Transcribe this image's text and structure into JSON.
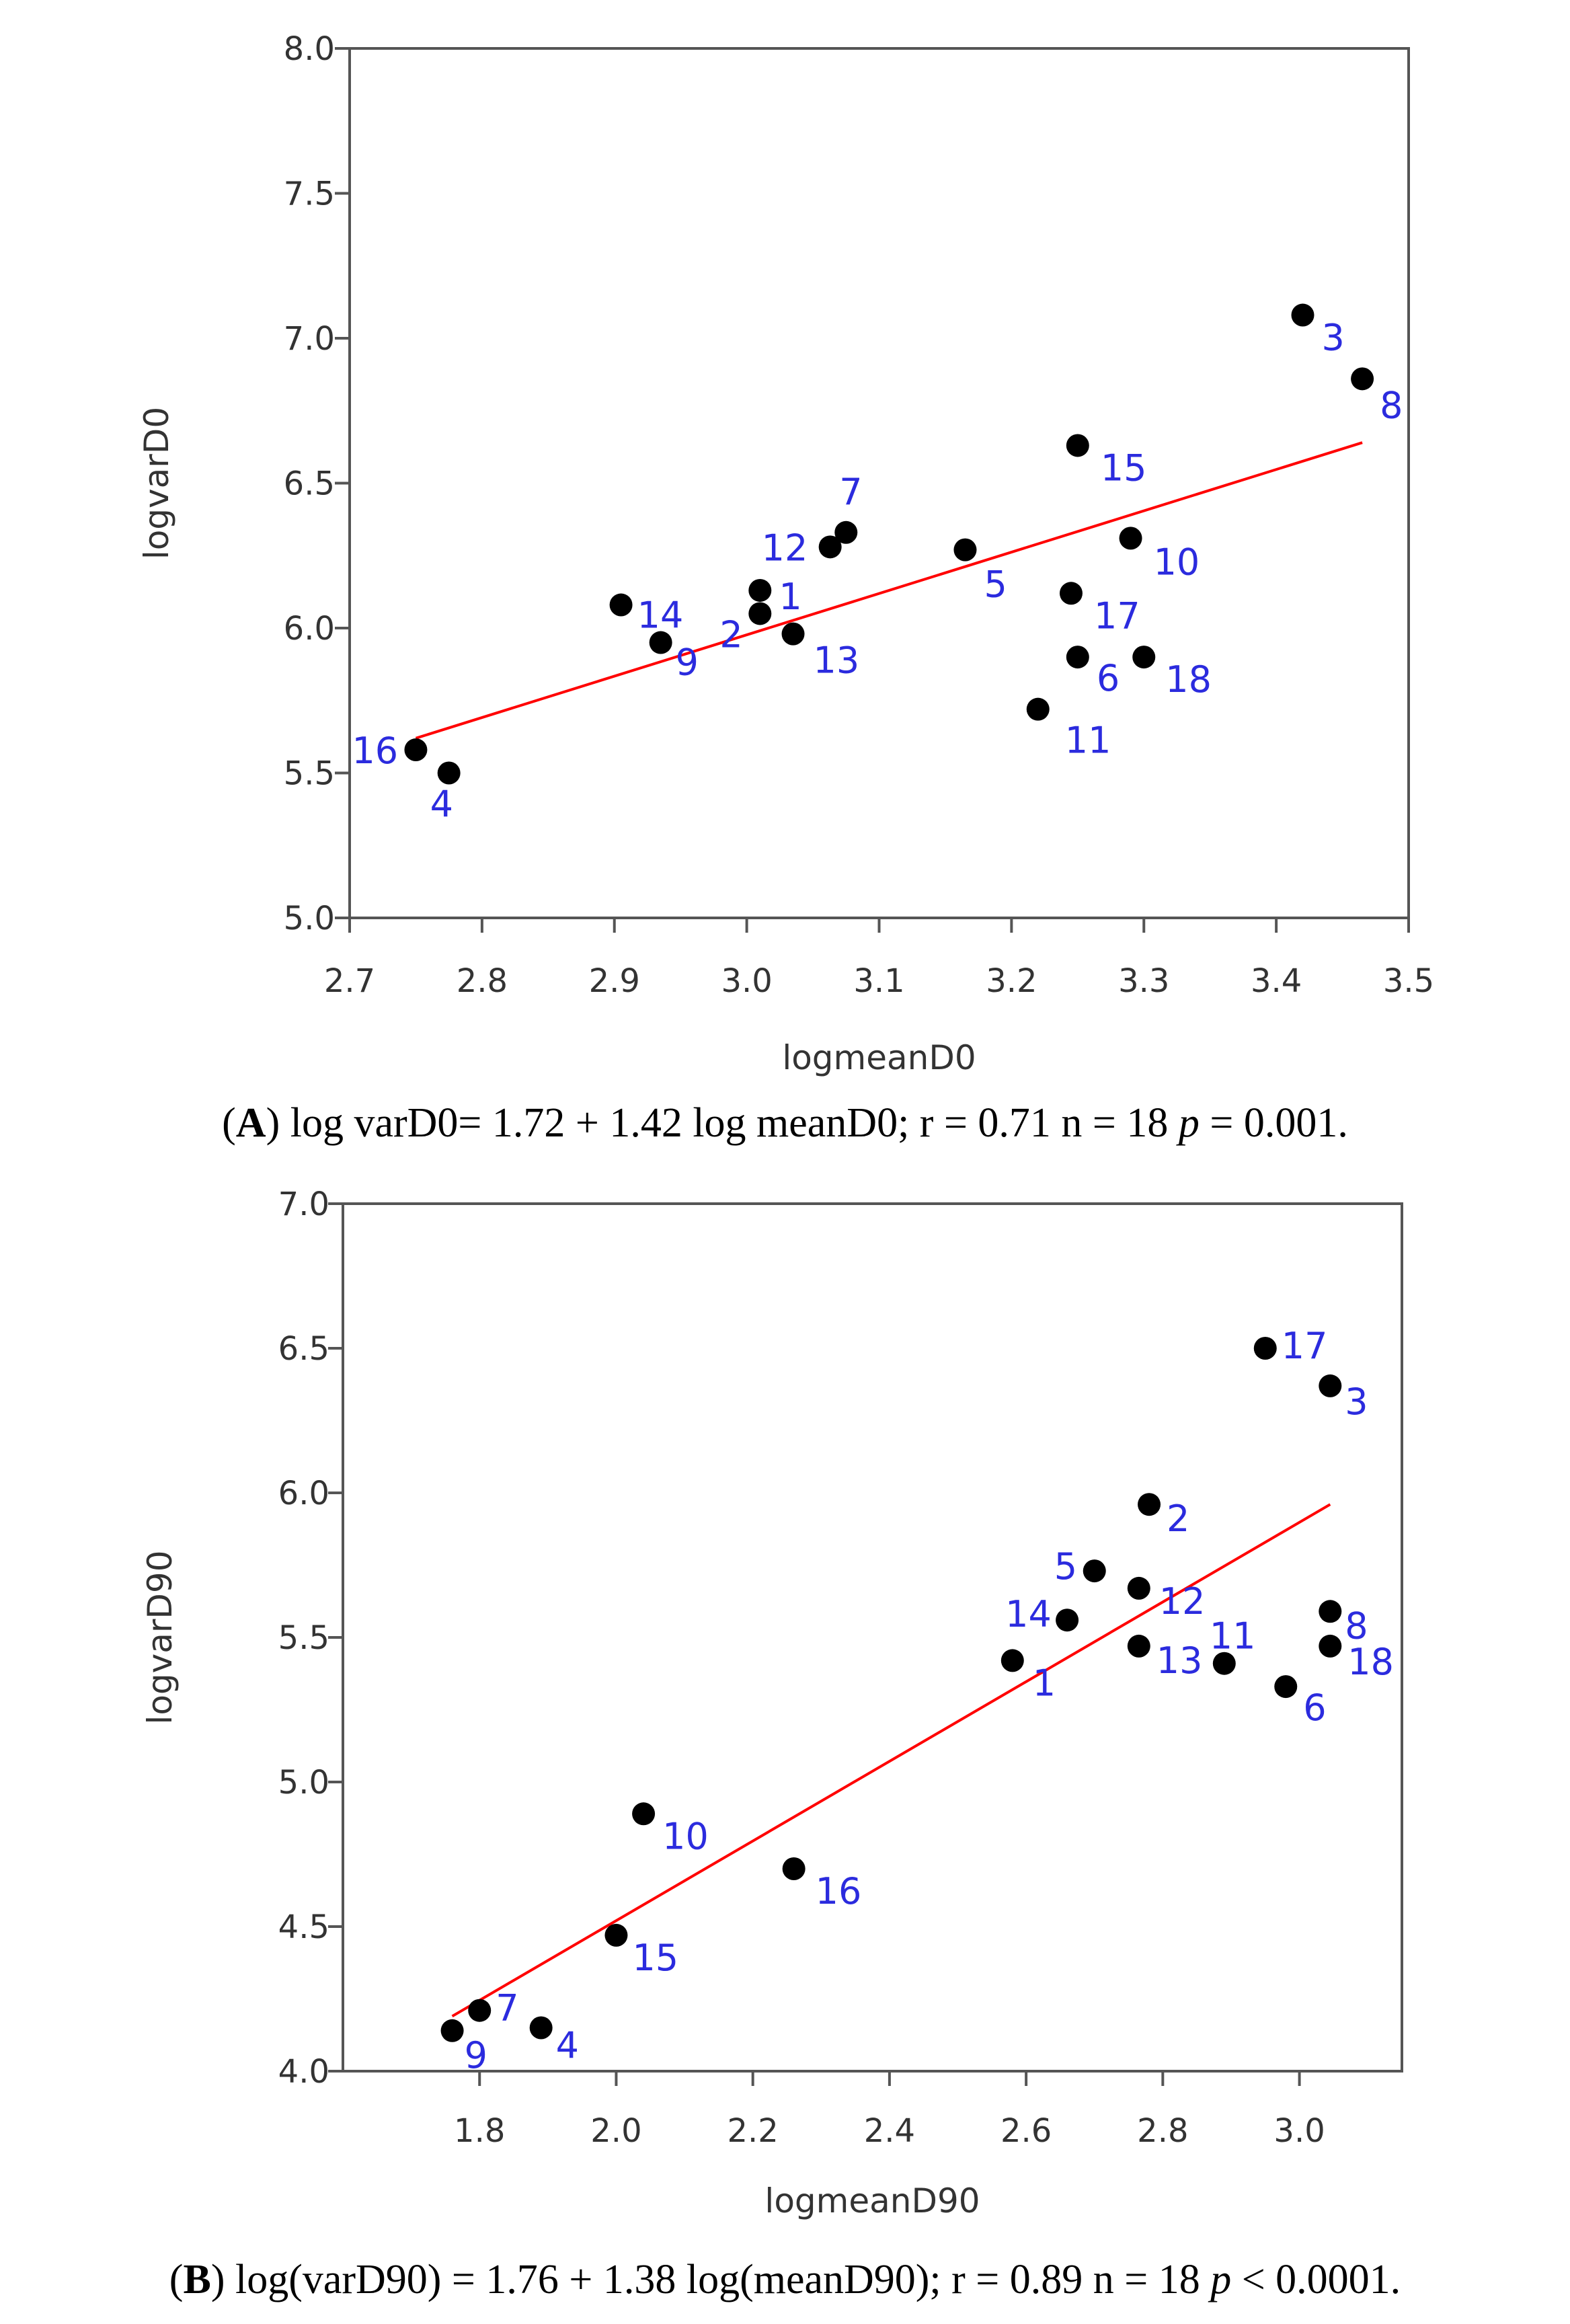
{
  "chart_data": [
    {
      "type": "scatter",
      "xlabel": "logmeanD0",
      "ylabel": "logvarD0",
      "xlim": [
        2.7,
        3.5
      ],
      "ylim": [
        5.0,
        8.0
      ],
      "x_ticks": [
        "2.7",
        "2.8",
        "2.9",
        "3.0",
        "3.1",
        "3.2",
        "3.3",
        "3.4",
        "3.5"
      ],
      "y_ticks": [
        "5.0",
        "5.5",
        "6.0",
        "6.5",
        "7.0",
        "7.5",
        "8.0"
      ],
      "points": [
        {
          "label": "1",
          "x": 3.01,
          "y": 6.13
        },
        {
          "label": "2",
          "x": 3.01,
          "y": 6.05
        },
        {
          "label": "3",
          "x": 3.42,
          "y": 7.08
        },
        {
          "label": "4",
          "x": 2.775,
          "y": 5.5
        },
        {
          "label": "5",
          "x": 3.165,
          "y": 6.27
        },
        {
          "label": "6",
          "x": 3.25,
          "y": 5.9
        },
        {
          "label": "7",
          "x": 3.075,
          "y": 6.33
        },
        {
          "label": "8",
          "x": 3.465,
          "y": 6.86
        },
        {
          "label": "9",
          "x": 2.935,
          "y": 5.95
        },
        {
          "label": "10",
          "x": 3.29,
          "y": 6.31
        },
        {
          "label": "11",
          "x": 3.22,
          "y": 5.72
        },
        {
          "label": "12",
          "x": 3.063,
          "y": 6.28
        },
        {
          "label": "13",
          "x": 3.035,
          "y": 5.98
        },
        {
          "label": "14",
          "x": 2.905,
          "y": 6.08
        },
        {
          "label": "15",
          "x": 3.25,
          "y": 6.63
        },
        {
          "label": "16",
          "x": 2.75,
          "y": 5.58
        },
        {
          "label": "17",
          "x": 3.245,
          "y": 6.12
        },
        {
          "label": "18",
          "x": 3.3,
          "y": 5.9
        }
      ],
      "fit_line": {
        "x": [
          2.75,
          3.465
        ],
        "y": [
          5.62,
          6.64
        ],
        "color": "#ff0000"
      },
      "point_color": "#000000",
      "label_color": "#2b2bde"
    },
    {
      "type": "scatter",
      "xlabel": "logmeanD90",
      "ylabel": "logvarD90",
      "xlim": [
        1.6,
        3.15
      ],
      "ylim": [
        4.0,
        7.0
      ],
      "x_ticks": [
        "1.8",
        "2.0",
        "2.2",
        "2.4",
        "2.6",
        "2.8",
        "3.0"
      ],
      "y_ticks": [
        "4.0",
        "4.5",
        "5.0",
        "5.5",
        "6.0",
        "6.5",
        "7.0"
      ],
      "points": [
        {
          "label": "1",
          "x": 2.58,
          "y": 5.42
        },
        {
          "label": "2",
          "x": 2.78,
          "y": 5.96
        },
        {
          "label": "3",
          "x": 3.045,
          "y": 6.37
        },
        {
          "label": "4",
          "x": 1.89,
          "y": 4.15
        },
        {
          "label": "5",
          "x": 2.7,
          "y": 5.73
        },
        {
          "label": "6",
          "x": 2.98,
          "y": 5.33
        },
        {
          "label": "7",
          "x": 1.8,
          "y": 4.21
        },
        {
          "label": "8",
          "x": 3.045,
          "y": 5.59
        },
        {
          "label": "9",
          "x": 1.76,
          "y": 4.14
        },
        {
          "label": "10",
          "x": 2.04,
          "y": 4.89
        },
        {
          "label": "11",
          "x": 2.89,
          "y": 5.41
        },
        {
          "label": "12",
          "x": 2.765,
          "y": 5.67
        },
        {
          "label": "13",
          "x": 2.765,
          "y": 5.47
        },
        {
          "label": "14",
          "x": 2.66,
          "y": 5.56
        },
        {
          "label": "15",
          "x": 2.0,
          "y": 4.47
        },
        {
          "label": "16",
          "x": 2.26,
          "y": 4.7
        },
        {
          "label": "17",
          "x": 2.95,
          "y": 6.5
        },
        {
          "label": "18",
          "x": 3.045,
          "y": 5.47
        }
      ],
      "fit_line": {
        "x": [
          1.76,
          3.045
        ],
        "y": [
          4.19,
          5.96
        ],
        "color": "#ff0000"
      },
      "point_color": "#000000",
      "label_color": "#2b2bde"
    }
  ],
  "captions": {
    "a": {
      "tag": "A",
      "text": "log varD0= 1.72 + 1.42 log meanD0; r = 0.71 n = 18 ",
      "p_symbol": "p",
      "p_value": " = 0.001."
    },
    "b": {
      "tag": "B",
      "text": "log(varD90) = 1.76 + 1.38 log(meanD90); r = 0.89 n = 18 ",
      "p_symbol": "p",
      "p_value": " < 0.0001."
    }
  }
}
